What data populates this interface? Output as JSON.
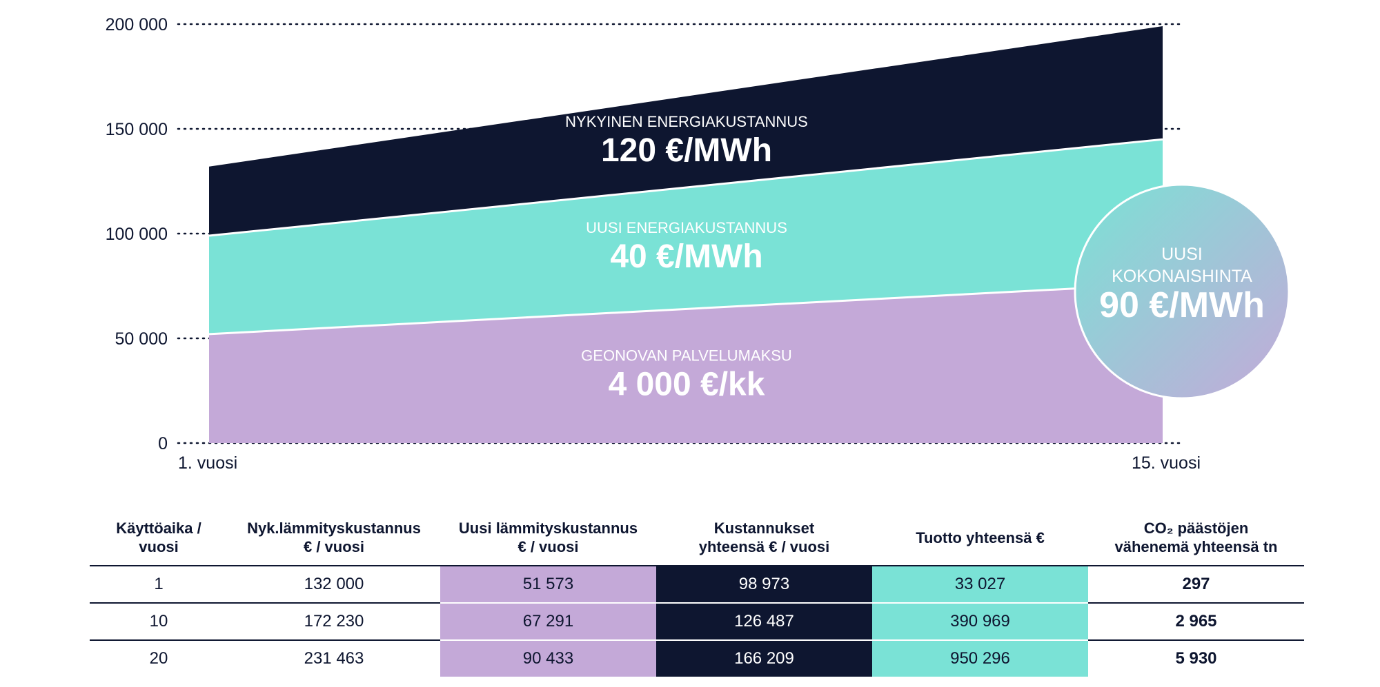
{
  "chart_data": {
    "type": "area",
    "stacked": true,
    "x_labels": [
      "1. vuosi",
      "15. vuosi"
    ],
    "x": [
      1,
      15
    ],
    "ylim": [
      0,
      200000
    ],
    "yticks": [
      "0",
      "50 000",
      "100 000",
      "150 000",
      "200 000"
    ],
    "ytick_values": [
      0,
      50000,
      100000,
      150000,
      200000
    ],
    "grid": "dotted horizontal",
    "series": [
      {
        "label": "GEONOVAN PALVELUMAKSU",
        "value_label": "4 000 €/kk",
        "color": "#c4a9d8",
        "top": [
          52000,
          76000
        ]
      },
      {
        "label": "UUSI ENERGIAKUSTANNUS",
        "value_label": "40 €/MWh",
        "color": "#7ae2d6",
        "top": [
          99000,
          145000
        ]
      },
      {
        "label": "NYKYINEN ENERGIAKUSTANNUS",
        "value_label": "120 €/MWh",
        "color": "#0e1630",
        "top": [
          132000,
          199000
        ]
      }
    ],
    "callout": {
      "line1": "UUSI",
      "line2": "KOKONAISHINTA",
      "value": "90 €/MWh"
    }
  },
  "table": {
    "headers": [
      [
        "Käyttöaika /",
        "vuosi"
      ],
      [
        "Nyk.lämmityskustannus",
        "€ / vuosi"
      ],
      [
        "Uusi lämmityskustannus",
        "€ / vuosi"
      ],
      [
        "Kustannukset",
        "yhteensä € / vuosi"
      ],
      [
        "Tuotto yhteensä €"
      ],
      [
        "CO₂ päästöjen",
        "vähenemä yhteensä tn"
      ]
    ],
    "rows": [
      [
        "1",
        "132 000",
        "51 573",
        "98 973",
        "33 027",
        "297"
      ],
      [
        "10",
        "172 230",
        "67 291",
        "126 487",
        "390 969",
        "2 965"
      ],
      [
        "20",
        "231 463",
        "90 433",
        "166 209",
        "950 296",
        "5 930"
      ]
    ]
  }
}
